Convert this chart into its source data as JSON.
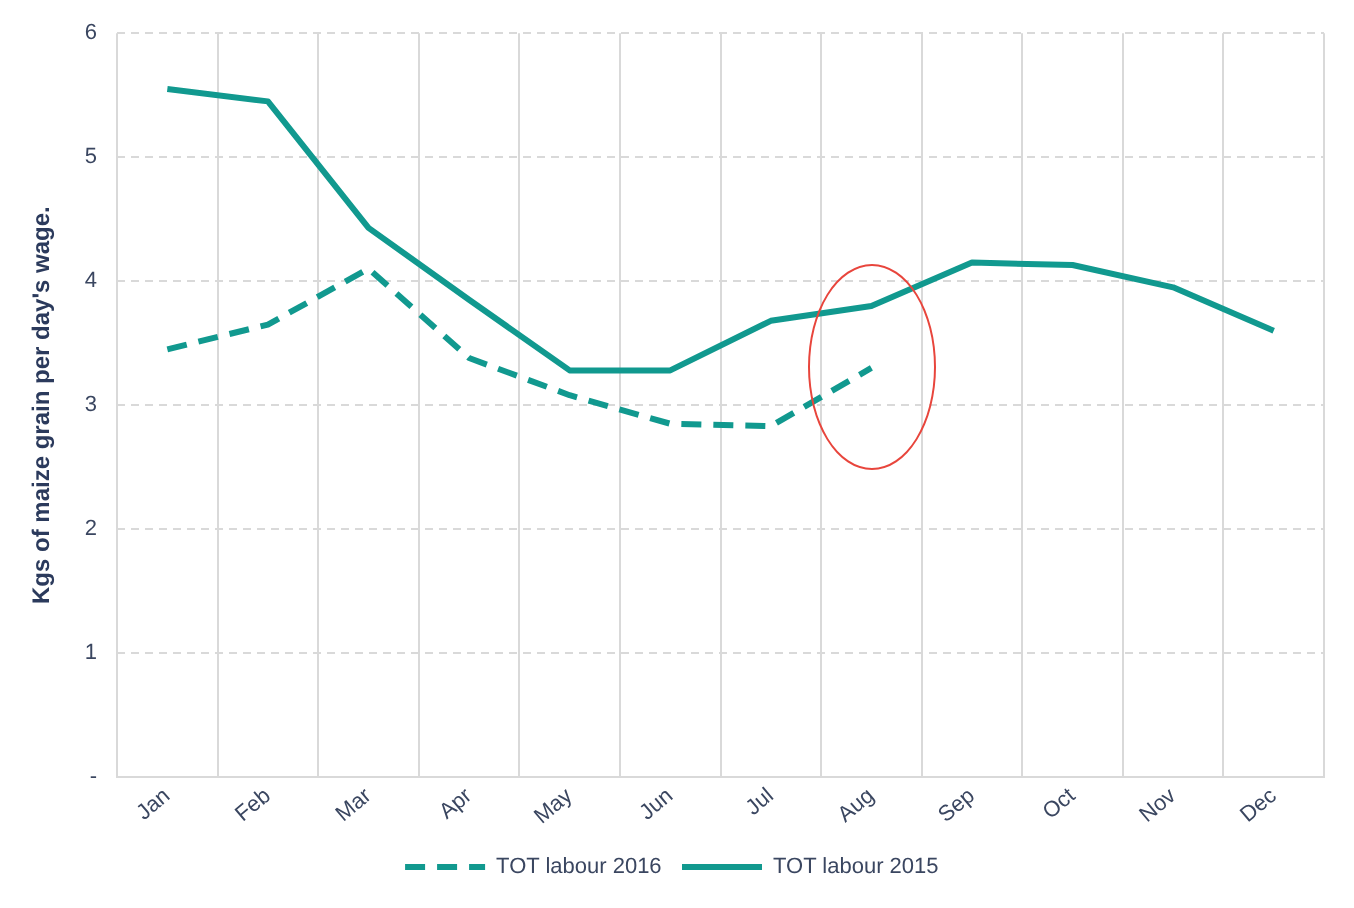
{
  "chart_data": {
    "type": "line",
    "ylabel": "Kgs of maize grain per day's wage.",
    "categories": [
      "Jan",
      "Feb",
      "Mar",
      "Apr",
      "May",
      "Jun",
      "Jul",
      "Aug",
      "Sep",
      "Oct",
      "Nov",
      "Dec"
    ],
    "series": [
      {
        "name": "TOT labour 2016",
        "color": "#11998f",
        "line_style": "dashed",
        "values": [
          3.45,
          3.65,
          4.1,
          3.38,
          3.08,
          2.85,
          2.83,
          3.3,
          null,
          null,
          null,
          null
        ]
      },
      {
        "name": "TOT labour 2015",
        "color": "#11998f",
        "line_style": "solid",
        "values": [
          5.55,
          5.45,
          4.43,
          3.85,
          3.28,
          3.28,
          3.68,
          3.8,
          4.15,
          4.13,
          3.95,
          3.6
        ]
      }
    ],
    "ylim": [
      0,
      6
    ],
    "yticks": [
      {
        "value": 0,
        "label": "-"
      },
      1,
      2,
      3,
      4,
      5,
      6
    ],
    "grid": true,
    "legend": "bottom",
    "marker": "none"
  }
}
